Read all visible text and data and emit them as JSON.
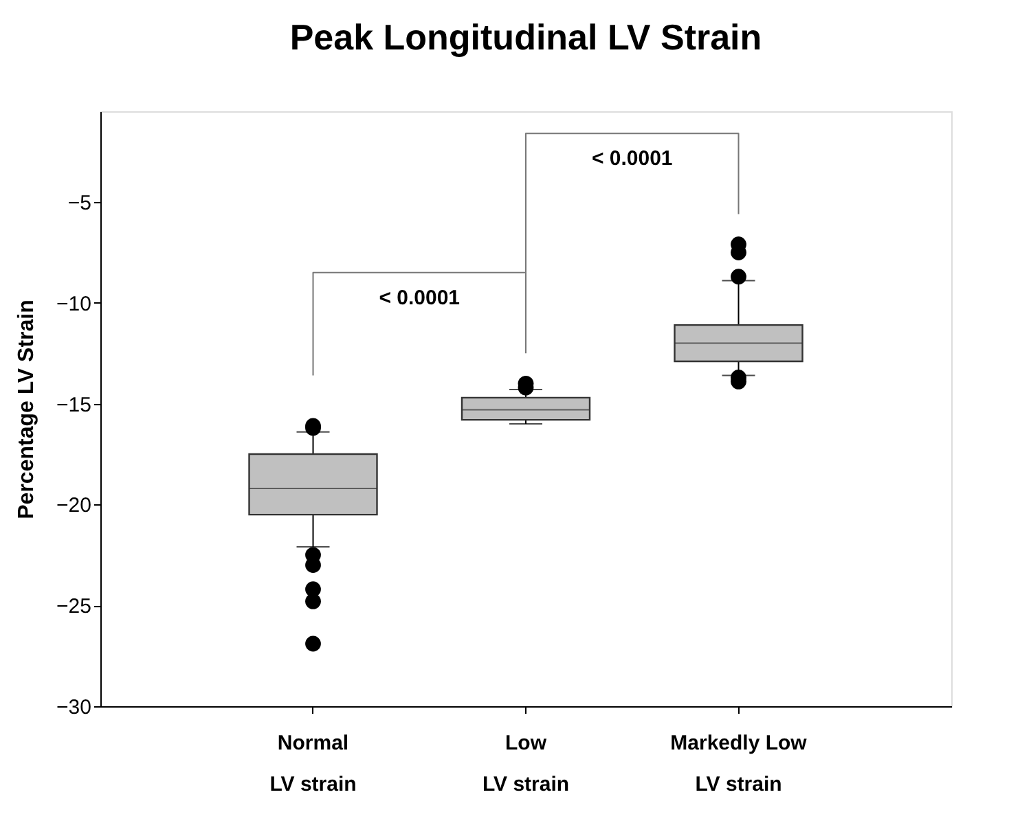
{
  "chart_data": {
    "type": "box",
    "title": "Peak Longitudinal LV Strain",
    "ylabel": "Percentage LV Strain",
    "categories": [
      "Normal\nLV strain",
      "Low\nLV strain",
      "Markedly Low\nLV strain"
    ],
    "boxes": [
      {
        "low": -22.1,
        "q1": -20.5,
        "median": -19.2,
        "q3": -17.5,
        "high": -16.4,
        "outliers": [
          -16.1,
          -16.2,
          -22.5,
          -23.0,
          -24.2,
          -24.8,
          -26.9
        ]
      },
      {
        "low": -16.0,
        "q1": -15.8,
        "median": -15.3,
        "q3": -14.7,
        "high": -14.3,
        "outliers": [
          -14.0,
          -14.2
        ]
      },
      {
        "low": -13.6,
        "q1": -12.9,
        "median": -12.0,
        "q3": -11.1,
        "high": -8.9,
        "outliers": [
          -7.1,
          -7.5,
          -8.7,
          -13.7,
          -13.9
        ]
      }
    ],
    "color": "#c0c0c0",
    "ylim": [
      -30,
      -0.5
    ],
    "yticks": [
      -30,
      -25,
      -20,
      -15,
      -10,
      -5
    ],
    "grid": false,
    "annotations": [
      "< 0.0001",
      "< 0.0001"
    ]
  }
}
